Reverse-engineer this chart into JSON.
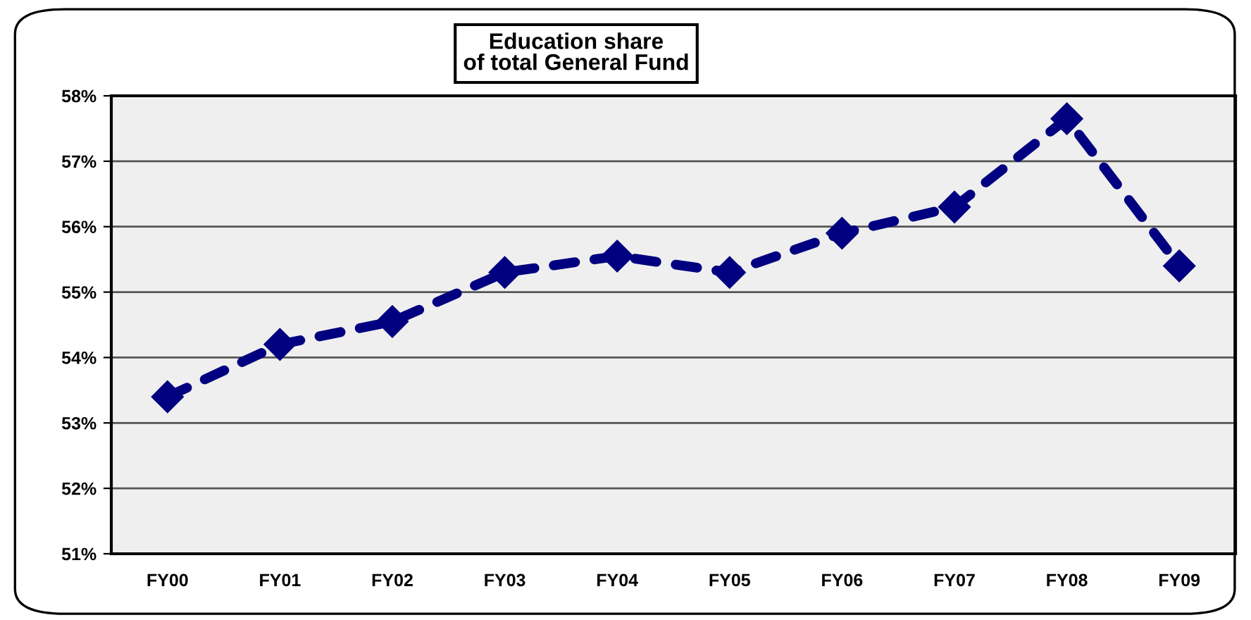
{
  "chart_data": {
    "type": "line",
    "title": "Education share\nof total General Fund",
    "categories": [
      "FY00",
      "FY01",
      "FY02",
      "FY03",
      "FY04",
      "FY05",
      "FY06",
      "FY07",
      "FY08",
      "FY09"
    ],
    "series": [
      {
        "color": "#000080",
        "values": [
          53.4,
          54.2,
          54.55,
          55.3,
          55.55,
          55.3,
          55.9,
          56.3,
          57.65,
          55.4
        ]
      }
    ],
    "ylim": [
      51,
      58
    ],
    "yticks": [
      {
        "value": 51,
        "label": "51%"
      },
      {
        "value": 52,
        "label": "52%"
      },
      {
        "value": 53,
        "label": "53%"
      },
      {
        "value": 54,
        "label": "54%"
      },
      {
        "value": 55,
        "label": "55%"
      },
      {
        "value": 56,
        "label": "56%"
      },
      {
        "value": 57,
        "label": "57%"
      },
      {
        "value": 58,
        "label": "58%"
      }
    ],
    "grid": "y",
    "marker": "diamond",
    "line_style": "dashed"
  }
}
